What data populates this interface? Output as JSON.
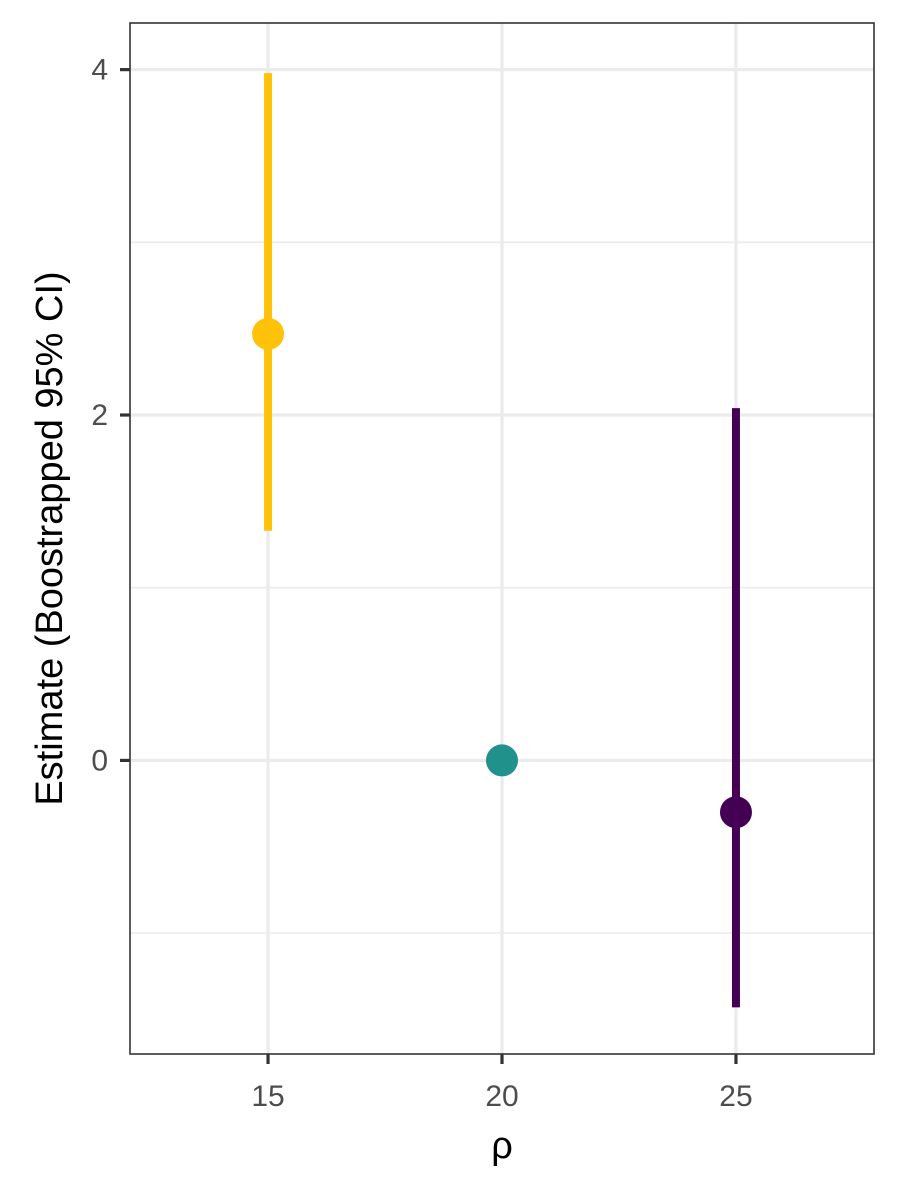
{
  "chart_data": {
    "type": "errorbar",
    "xlabel": "ρ",
    "ylabel": "Estimate (Boostrapped 95% CI)",
    "xlim": [
      12.05,
      27.95
    ],
    "ylim": [
      -1.7,
      4.27
    ],
    "x_ticks": [
      15,
      20,
      25
    ],
    "x_tick_labels": [
      "15",
      "20",
      "25"
    ],
    "y_ticks": [
      0,
      2,
      4
    ],
    "y_tick_labels": [
      "0",
      "2",
      "4"
    ],
    "grid": true,
    "legend": "none",
    "points": [
      {
        "x": 15,
        "estimate": 2.47,
        "ci_low": 1.33,
        "ci_high": 3.98,
        "color": "#FFC20A"
      },
      {
        "x": 20,
        "estimate": 0.0,
        "ci_low": 0.0,
        "ci_high": 0.0,
        "color": "#21918C"
      },
      {
        "x": 25,
        "estimate": -0.3,
        "ci_low": -1.43,
        "ci_high": 2.04,
        "color": "#440154"
      }
    ]
  }
}
